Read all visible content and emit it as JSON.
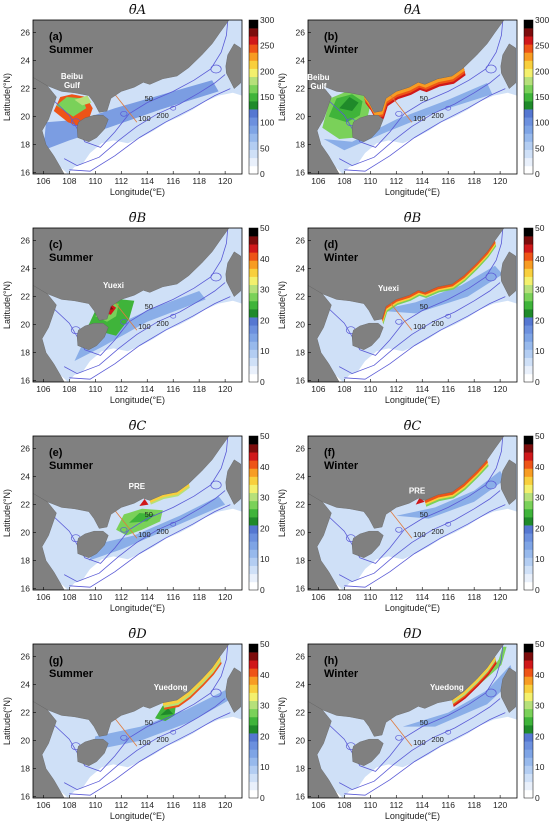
{
  "figure": {
    "colorbar": {
      "colors": [
        "#ffffff",
        "#e9f0fb",
        "#cfe0f7",
        "#b3cdf2",
        "#97b9ec",
        "#7ea4e5",
        "#6c90de",
        "#5577d1",
        "#1f8a2a",
        "#3fb43a",
        "#7ad159",
        "#b6e07a",
        "#f3f06d",
        "#f8cf3d",
        "#f79c23",
        "#ee5417",
        "#d0181a",
        "#7c0c0c",
        "#000000"
      ]
    },
    "x_ticks": [
      "106",
      "108",
      "110",
      "112",
      "114",
      "116",
      "118",
      "120"
    ],
    "y_ticks": [
      "16",
      "18",
      "20",
      "22",
      "24",
      "26"
    ],
    "xlabel": "Longitude(°E)",
    "ylabel": "Latitude(°N)",
    "contour_labels": [
      "50",
      "100",
      "200"
    ],
    "panels": [
      {
        "id": "a",
        "title": "θ̄A",
        "label": "(a)",
        "season": "Summer",
        "place": "Beibu Gulf",
        "place_lines": [
          "Beibu",
          "Gulf"
        ],
        "cbar_ticks": [
          "300",
          "250",
          "200",
          "150",
          "100",
          "50",
          "0"
        ]
      },
      {
        "id": "b",
        "title": "θ̄A",
        "label": "(b)",
        "season": "Winter",
        "place": "Beibu Gulf",
        "place_lines": [
          "Beibu",
          "Gulf"
        ],
        "cbar_ticks": [
          "300",
          "250",
          "200",
          "150",
          "100",
          "50",
          "0"
        ]
      },
      {
        "id": "c",
        "title": "θ̄B",
        "label": "(c)",
        "season": "Summer",
        "place": "Yuexi",
        "place_lines": [
          "Yuexi"
        ],
        "cbar_ticks": [
          "50",
          "40",
          "30",
          "20",
          "10",
          "0"
        ]
      },
      {
        "id": "d",
        "title": "θ̄B",
        "label": "(d)",
        "season": "Winter",
        "place": "Yuexi",
        "place_lines": [
          "Yuexi"
        ],
        "cbar_ticks": [
          "50",
          "40",
          "30",
          "20",
          "10",
          "0"
        ]
      },
      {
        "id": "e",
        "title": "θ̄C",
        "label": "(e)",
        "season": "Summer",
        "place": "PRE",
        "place_lines": [
          "PRE"
        ],
        "cbar_ticks": [
          "50",
          "40",
          "30",
          "20",
          "10",
          "0"
        ]
      },
      {
        "id": "f",
        "title": "θ̄C",
        "label": "(f)",
        "season": "Winter",
        "place": "PRE",
        "place_lines": [
          "PRE"
        ],
        "cbar_ticks": [
          "50",
          "40",
          "30",
          "20",
          "10",
          "0"
        ]
      },
      {
        "id": "g",
        "title": "θ̄D",
        "label": "(g)",
        "season": "Summer",
        "place": "Yuedong",
        "place_lines": [
          "Yuedong"
        ],
        "cbar_ticks": [
          "50",
          "40",
          "30",
          "20",
          "10",
          "0"
        ]
      },
      {
        "id": "h",
        "title": "θ̄D",
        "label": "(h)",
        "season": "Winter",
        "place": "Yuedong",
        "place_lines": [
          "Yuedong"
        ],
        "cbar_ticks": [
          "50",
          "40",
          "30",
          "20",
          "10",
          "0"
        ]
      }
    ]
  }
}
